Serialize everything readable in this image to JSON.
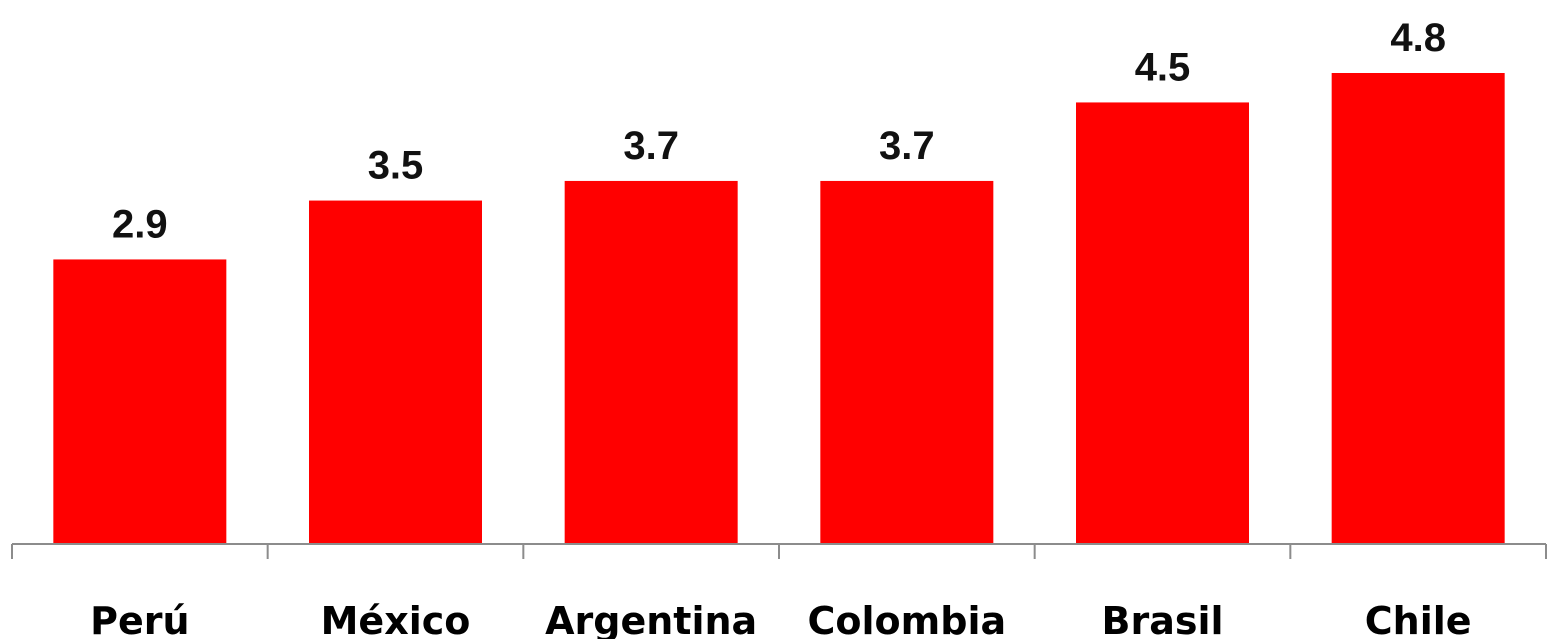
{
  "chart_data": {
    "type": "bar",
    "title": "",
    "xlabel": "",
    "ylabel": "",
    "categories": [
      "Perú",
      "México",
      "Argentina",
      "Colombia",
      "Brasil",
      "Chile"
    ],
    "values": [
      2.9,
      3.5,
      3.7,
      3.7,
      4.5,
      4.8
    ],
    "value_labels": [
      "2.9",
      "3.5",
      "3.7",
      "3.7",
      "4.5",
      "4.8"
    ],
    "ylim": [
      0,
      4.8
    ],
    "grid": false,
    "legend": "none",
    "bar_color": "#ff0000"
  }
}
